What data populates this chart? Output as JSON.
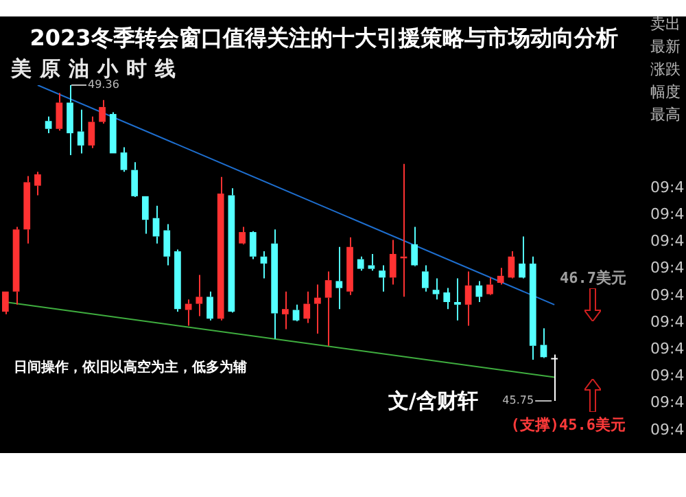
{
  "chart_data": {
    "type": "candlestick",
    "title": "2023冬季转会窗口值得关注的十大引援策略与市场动向分析",
    "subtitle": "美原油小时线",
    "categories": [
      null,
      null,
      null,
      null,
      null,
      null,
      null,
      null,
      null,
      null,
      null,
      null,
      null,
      null,
      null,
      null,
      null,
      null,
      null,
      null,
      null,
      null,
      null,
      null,
      null,
      null,
      null,
      null,
      null,
      null,
      null,
      null,
      null,
      null,
      null,
      null,
      null,
      null,
      null,
      null,
      null,
      null,
      null,
      null,
      null,
      null,
      null,
      null,
      null,
      null,
      null,
      null
    ],
    "ohlc": [
      [
        46.77,
        47.0,
        46.74,
        47.0
      ],
      [
        47.0,
        47.74,
        46.85,
        47.71
      ],
      [
        47.71,
        48.32,
        47.55,
        48.25
      ],
      [
        48.21,
        48.37,
        48.1,
        48.34
      ],
      [
        48.95,
        49.0,
        48.81,
        48.86
      ],
      [
        48.86,
        49.27,
        48.84,
        49.16
      ],
      [
        49.16,
        49.36,
        48.56,
        48.81
      ],
      [
        48.83,
        49.08,
        48.58,
        48.67
      ],
      [
        48.67,
        49.0,
        48.64,
        48.94
      ],
      [
        48.94,
        49.19,
        48.92,
        49.11
      ],
      [
        49.03,
        49.05,
        48.58,
        48.58
      ],
      [
        48.59,
        48.65,
        48.37,
        48.39
      ],
      [
        48.39,
        48.48,
        48.08,
        48.09
      ],
      [
        48.09,
        48.09,
        47.66,
        47.82
      ],
      [
        47.84,
        47.98,
        47.55,
        47.63
      ],
      [
        47.7,
        47.77,
        47.3,
        47.4
      ],
      [
        47.46,
        47.48,
        46.77,
        46.8
      ],
      [
        46.79,
        46.91,
        46.61,
        46.86
      ],
      [
        46.86,
        47.19,
        46.72,
        46.94
      ],
      [
        46.94,
        47.0,
        46.67,
        46.69
      ],
      [
        46.69,
        48.31,
        46.67,
        48.12
      ],
      [
        48.1,
        48.18,
        46.76,
        46.77
      ],
      [
        47.55,
        47.74,
        47.54,
        47.68
      ],
      [
        47.68,
        47.69,
        47.37,
        47.4
      ],
      [
        47.4,
        47.46,
        47.15,
        47.32
      ],
      [
        47.55,
        47.71,
        46.46,
        46.75
      ],
      [
        46.74,
        47.0,
        46.57,
        46.8
      ],
      [
        46.79,
        46.85,
        46.66,
        46.67
      ],
      [
        46.69,
        47.0,
        46.64,
        46.86
      ],
      [
        46.86,
        47.08,
        46.52,
        46.93
      ],
      [
        46.93,
        47.23,
        46.38,
        47.13
      ],
      [
        47.12,
        47.51,
        46.8,
        47.04
      ],
      [
        47.0,
        47.62,
        46.96,
        47.51
      ],
      [
        47.37,
        47.4,
        47.24,
        47.26
      ],
      [
        47.3,
        47.43,
        47.24,
        47.26
      ],
      [
        47.24,
        47.3,
        47.0,
        47.16
      ],
      [
        47.16,
        47.59,
        47.08,
        47.43
      ],
      [
        47.38,
        48.46,
        46.94,
        47.4
      ],
      [
        47.54,
        47.74,
        47.29,
        47.3
      ],
      [
        47.23,
        47.3,
        47.0,
        47.04
      ],
      [
        47.02,
        47.15,
        46.91,
        46.97
      ],
      [
        46.99,
        47.04,
        46.8,
        46.88
      ],
      [
        46.88,
        47.15,
        46.67,
        46.85
      ],
      [
        46.85,
        47.23,
        46.61,
        47.07
      ],
      [
        47.07,
        47.12,
        46.88,
        46.94
      ],
      [
        46.97,
        47.16,
        46.96,
        47.08
      ],
      [
        47.1,
        47.27,
        47.08,
        47.18
      ],
      [
        47.16,
        47.46,
        47.15,
        47.4
      ],
      [
        47.32,
        47.63,
        47.15,
        47.16
      ],
      [
        47.32,
        47.4,
        46.22,
        46.38
      ],
      [
        46.39,
        46.58,
        46.24,
        46.25
      ],
      [
        46.24,
        46.28,
        45.75,
        46.24
      ]
    ],
    "colors": [
      "#ff3232",
      "#ff3232",
      "#ff3232",
      "#ff3232",
      "#54ffff",
      "#ff3232",
      "#54ffff",
      "#54ffff",
      "#ff3232",
      "#ff3232",
      "#54ffff",
      "#54ffff",
      "#54ffff",
      "#54ffff",
      "#54ffff",
      "#54ffff",
      "#54ffff",
      "#ff3232",
      "#ff3232",
      "#54ffff",
      "#ff3232",
      "#54ffff",
      "#ff3232",
      "#54ffff",
      "#54ffff",
      "#54ffff",
      "#ff3232",
      "#54ffff",
      "#ff3232",
      "#ff3232",
      "#ff3232",
      "#54ffff",
      "#ff3232",
      "#54ffff",
      "#54ffff",
      "#54ffff",
      "#ff3232",
      "#ff3232",
      "#54ffff",
      "#54ffff",
      "#54ffff",
      "#54ffff",
      "#54ffff",
      "#ff3232",
      "#54ffff",
      "#ff3232",
      "#ff3232",
      "#ff3232",
      "#54ffff",
      "#54ffff",
      "#54ffff",
      "#ffffff"
    ],
    "series": [
      {
        "type": "line",
        "color": "#1e6fd0",
        "values": [
          null,
          null,
          null,
          49.36,
          null,
          null,
          null,
          null,
          null,
          null,
          null,
          null,
          null,
          null,
          null,
          null,
          null,
          null,
          null,
          null,
          null,
          null,
          null,
          null,
          null,
          null,
          null,
          null,
          null,
          null,
          null,
          null,
          null,
          null,
          null,
          null,
          null,
          null,
          null,
          null,
          null,
          null,
          null,
          null,
          null,
          null,
          null,
          null,
          null,
          null,
          null,
          46.85
        ]
      },
      {
        "type": "line",
        "color": "#3fae3f",
        "values": [
          46.88,
          null,
          null,
          null,
          null,
          null,
          null,
          null,
          null,
          null,
          null,
          null,
          null,
          null,
          null,
          null,
          null,
          null,
          null,
          null,
          null,
          null,
          null,
          null,
          null,
          null,
          null,
          null,
          null,
          null,
          null,
          null,
          null,
          null,
          null,
          null,
          null,
          null,
          null,
          null,
          null,
          null,
          null,
          null,
          null,
          null,
          null,
          null,
          null,
          null,
          null,
          46.02
        ]
      }
    ],
    "annotations": [
      "49.36",
      "45.75",
      "46.7美元",
      "(支撑)45.6美元",
      "日间操作，依旧以高空为主，低多为辅",
      "文/含财轩",
      "卖出",
      "最新",
      "涨跌",
      "幅度",
      "最高",
      "09:4",
      "09:4",
      "09:4",
      "09:4",
      "09:4",
      "09:4",
      "09:4",
      "09:4",
      "09:4",
      "09:4"
    ]
  }
}
